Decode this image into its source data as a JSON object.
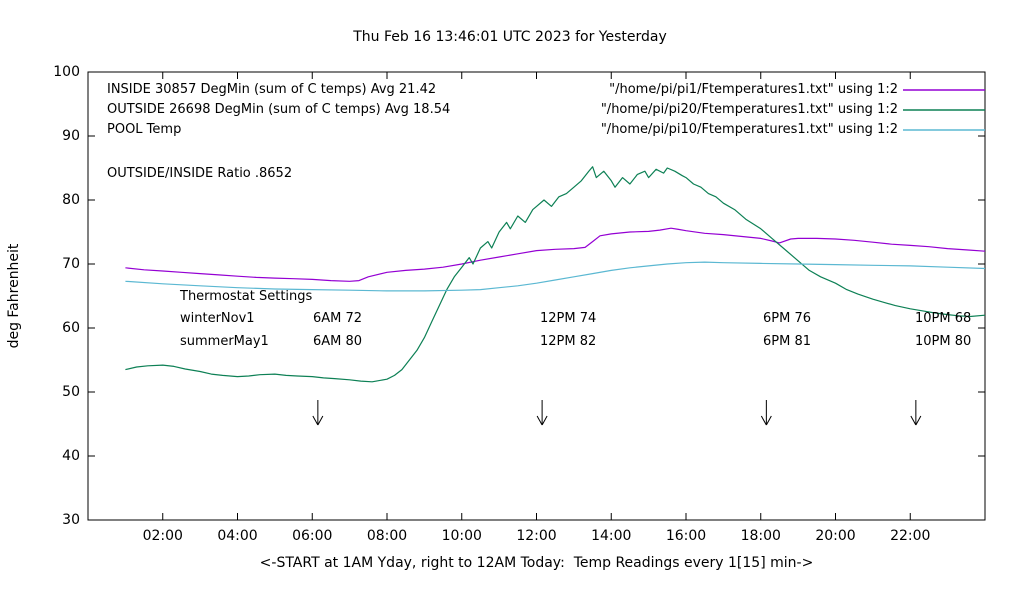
{
  "legend": {
    "rows": [
      {
        "label": "INSIDE 30857 DegMin (sum of C temps) Avg 21.42",
        "file": "\"/home/pi/pi1/Ftemperatures1.txt\" using 1:2"
      },
      {
        "label": "OUTSIDE 26698 DegMin (sum of C temps) Avg 18.54",
        "file": "\"/home/pi/pi20/Ftemperatures1.txt\" using 1:2"
      },
      {
        "label": "POOL Temp",
        "file": "\"/home/pi/pi10/Ftemperatures1.txt\" using 1:2"
      }
    ],
    "ratio_label": "OUTSIDE/INSIDE Ratio .8652"
  },
  "thermostat": {
    "heading": "Thermostat Settings",
    "rows": [
      {
        "name": "winterNov1",
        "c1": "6AM 72",
        "c2": "12PM 74",
        "c3": "6PM 76",
        "c4": "10PM 68"
      },
      {
        "name": "summerMay1",
        "c1": "6AM 80",
        "c2": "12PM 82",
        "c3": "6PM 81",
        "c4": "10PM 80"
      }
    ]
  },
  "chart_data": {
    "type": "line",
    "title": "Thu Feb 16 13:46:01 UTC 2023 for Yesterday",
    "xlabel": "<-START at 1AM Yday, right to 12AM Today:  Temp Readings every 1[15] min->",
    "ylabel": "deg Fahrenheit",
    "xlim": [
      0,
      24
    ],
    "ylim": [
      30,
      100
    ],
    "grid": false,
    "legend_position": "top-inside",
    "x_ticks": [
      {
        "hour": 2,
        "label": "02:00"
      },
      {
        "hour": 4,
        "label": "04:00"
      },
      {
        "hour": 6,
        "label": "06:00"
      },
      {
        "hour": 8,
        "label": "08:00"
      },
      {
        "hour": 10,
        "label": "10:00"
      },
      {
        "hour": 12,
        "label": "12:00"
      },
      {
        "hour": 14,
        "label": "14:00"
      },
      {
        "hour": 16,
        "label": "16:00"
      },
      {
        "hour": 18,
        "label": "18:00"
      },
      {
        "hour": 20,
        "label": "20:00"
      },
      {
        "hour": 22,
        "label": "22:00"
      }
    ],
    "y_ticks": [
      30,
      40,
      50,
      60,
      70,
      80,
      90,
      100
    ],
    "arrow_hours": [
      6.15,
      12.15,
      18.15,
      22.15
    ],
    "series": [
      {
        "name": "INSIDE",
        "color": "#9400d3",
        "points": [
          [
            1,
            69.4
          ],
          [
            1.5,
            69.1
          ],
          [
            2,
            68.9
          ],
          [
            2.5,
            68.7
          ],
          [
            3,
            68.5
          ],
          [
            3.5,
            68.3
          ],
          [
            4,
            68.1
          ],
          [
            4.5,
            67.9
          ],
          [
            5,
            67.8
          ],
          [
            5.5,
            67.7
          ],
          [
            6,
            67.6
          ],
          [
            6.5,
            67.4
          ],
          [
            7,
            67.3
          ],
          [
            7.25,
            67.4
          ],
          [
            7.5,
            68.0
          ],
          [
            8,
            68.7
          ],
          [
            8.5,
            69.0
          ],
          [
            9,
            69.2
          ],
          [
            9.5,
            69.5
          ],
          [
            10,
            70.0
          ],
          [
            10.5,
            70.6
          ],
          [
            11,
            71.1
          ],
          [
            11.5,
            71.6
          ],
          [
            12,
            72.1
          ],
          [
            12.5,
            72.3
          ],
          [
            13,
            72.4
          ],
          [
            13.3,
            72.6
          ],
          [
            13.5,
            73.5
          ],
          [
            13.7,
            74.4
          ],
          [
            14,
            74.7
          ],
          [
            14.5,
            75.0
          ],
          [
            15,
            75.1
          ],
          [
            15.3,
            75.3
          ],
          [
            15.6,
            75.6
          ],
          [
            15.8,
            75.4
          ],
          [
            16,
            75.2
          ],
          [
            16.5,
            74.8
          ],
          [
            17,
            74.6
          ],
          [
            17.5,
            74.3
          ],
          [
            18,
            74.0
          ],
          [
            18.3,
            73.6
          ],
          [
            18.5,
            73.3
          ],
          [
            18.8,
            73.9
          ],
          [
            19,
            74.0
          ],
          [
            19.5,
            74.0
          ],
          [
            20,
            73.9
          ],
          [
            20.5,
            73.7
          ],
          [
            21,
            73.4
          ],
          [
            21.5,
            73.1
          ],
          [
            22,
            72.9
          ],
          [
            22.5,
            72.7
          ],
          [
            23,
            72.4
          ],
          [
            23.5,
            72.2
          ],
          [
            24,
            72.0
          ]
        ]
      },
      {
        "name": "OUTSIDE",
        "color": "#0d8055",
        "points": [
          [
            1,
            53.5
          ],
          [
            1.3,
            53.9
          ],
          [
            1.6,
            54.1
          ],
          [
            2,
            54.2
          ],
          [
            2.3,
            54.0
          ],
          [
            2.6,
            53.6
          ],
          [
            3,
            53.2
          ],
          [
            3.3,
            52.8
          ],
          [
            3.6,
            52.6
          ],
          [
            4,
            52.4
          ],
          [
            4.3,
            52.5
          ],
          [
            4.6,
            52.7
          ],
          [
            5,
            52.8
          ],
          [
            5.3,
            52.6
          ],
          [
            5.6,
            52.5
          ],
          [
            6,
            52.4
          ],
          [
            6.3,
            52.2
          ],
          [
            6.6,
            52.1
          ],
          [
            7,
            51.9
          ],
          [
            7.3,
            51.7
          ],
          [
            7.6,
            51.6
          ],
          [
            8,
            52.0
          ],
          [
            8.2,
            52.6
          ],
          [
            8.4,
            53.5
          ],
          [
            8.6,
            55.0
          ],
          [
            8.8,
            56.5
          ],
          [
            9,
            58.5
          ],
          [
            9.2,
            61.0
          ],
          [
            9.4,
            63.5
          ],
          [
            9.6,
            66.0
          ],
          [
            9.8,
            68.0
          ],
          [
            10,
            69.5
          ],
          [
            10.2,
            71.0
          ],
          [
            10.3,
            70.0
          ],
          [
            10.5,
            72.5
          ],
          [
            10.7,
            73.5
          ],
          [
            10.8,
            72.5
          ],
          [
            11,
            75.0
          ],
          [
            11.2,
            76.5
          ],
          [
            11.3,
            75.5
          ],
          [
            11.5,
            77.5
          ],
          [
            11.7,
            76.5
          ],
          [
            11.9,
            78.5
          ],
          [
            12,
            79.0
          ],
          [
            12.2,
            80.0
          ],
          [
            12.4,
            79.0
          ],
          [
            12.6,
            80.5
          ],
          [
            12.8,
            81.0
          ],
          [
            13,
            82.0
          ],
          [
            13.2,
            83.0
          ],
          [
            13.4,
            84.5
          ],
          [
            13.5,
            85.2
          ],
          [
            13.6,
            83.5
          ],
          [
            13.8,
            84.5
          ],
          [
            14,
            83.0
          ],
          [
            14.1,
            82.0
          ],
          [
            14.3,
            83.5
          ],
          [
            14.5,
            82.5
          ],
          [
            14.7,
            84.0
          ],
          [
            14.9,
            84.5
          ],
          [
            15,
            83.5
          ],
          [
            15.2,
            84.8
          ],
          [
            15.4,
            84.2
          ],
          [
            15.5,
            85.0
          ],
          [
            15.7,
            84.5
          ],
          [
            15.9,
            83.8
          ],
          [
            16,
            83.5
          ],
          [
            16.2,
            82.5
          ],
          [
            16.4,
            82.0
          ],
          [
            16.6,
            81.0
          ],
          [
            16.8,
            80.5
          ],
          [
            17,
            79.5
          ],
          [
            17.3,
            78.5
          ],
          [
            17.6,
            77.0
          ],
          [
            18,
            75.5
          ],
          [
            18.3,
            74.0
          ],
          [
            18.6,
            72.5
          ],
          [
            19,
            70.5
          ],
          [
            19.3,
            69.0
          ],
          [
            19.6,
            68.0
          ],
          [
            20,
            67.0
          ],
          [
            20.3,
            66.0
          ],
          [
            20.6,
            65.3
          ],
          [
            21,
            64.5
          ],
          [
            21.3,
            64.0
          ],
          [
            21.6,
            63.5
          ],
          [
            22,
            63.0
          ],
          [
            22.3,
            62.7
          ],
          [
            22.6,
            62.4
          ],
          [
            23,
            62.1
          ],
          [
            23.3,
            61.9
          ],
          [
            23.6,
            61.8
          ],
          [
            24,
            62.0
          ]
        ]
      },
      {
        "name": "POOL",
        "color": "#5bb8d2",
        "points": [
          [
            1,
            67.3
          ],
          [
            2,
            66.9
          ],
          [
            3,
            66.6
          ],
          [
            4,
            66.3
          ],
          [
            5,
            66.1
          ],
          [
            6,
            66.0
          ],
          [
            7,
            65.9
          ],
          [
            8,
            65.8
          ],
          [
            9,
            65.8
          ],
          [
            10,
            65.9
          ],
          [
            10.5,
            66.0
          ],
          [
            11,
            66.3
          ],
          [
            11.5,
            66.6
          ],
          [
            12,
            67.0
          ],
          [
            12.5,
            67.5
          ],
          [
            13,
            68.0
          ],
          [
            13.5,
            68.5
          ],
          [
            14,
            69.0
          ],
          [
            14.5,
            69.4
          ],
          [
            15,
            69.7
          ],
          [
            15.5,
            70.0
          ],
          [
            16,
            70.2
          ],
          [
            16.5,
            70.3
          ],
          [
            17,
            70.2
          ],
          [
            18,
            70.1
          ],
          [
            19,
            70.0
          ],
          [
            20,
            69.9
          ],
          [
            21,
            69.8
          ],
          [
            22,
            69.7
          ],
          [
            23,
            69.5
          ],
          [
            24,
            69.3
          ]
        ]
      }
    ]
  }
}
